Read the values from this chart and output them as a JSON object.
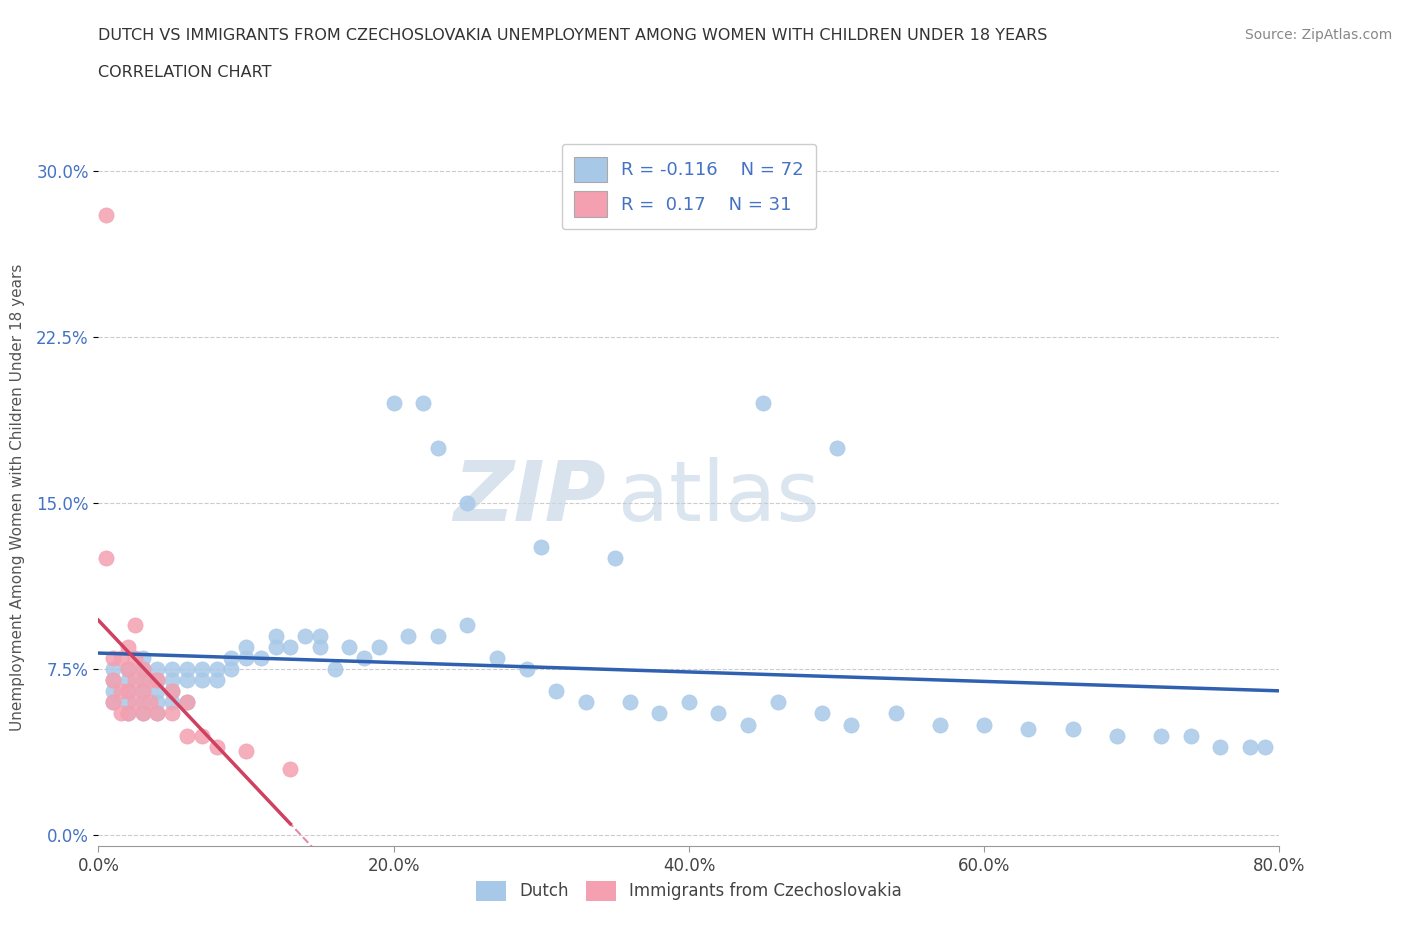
{
  "title_line1": "DUTCH VS IMMIGRANTS FROM CZECHOSLOVAKIA UNEMPLOYMENT AMONG WOMEN WITH CHILDREN UNDER 18 YEARS",
  "title_line2": "CORRELATION CHART",
  "source": "Source: ZipAtlas.com",
  "ylabel": "Unemployment Among Women with Children Under 18 years",
  "xlim": [
    0.0,
    0.8
  ],
  "ylim": [
    -0.005,
    0.31
  ],
  "yticks": [
    0.0,
    0.075,
    0.15,
    0.225,
    0.3
  ],
  "ytick_labels": [
    "0.0%",
    "7.5%",
    "15.0%",
    "22.5%",
    "30.0%"
  ],
  "xticks": [
    0.0,
    0.2,
    0.4,
    0.6,
    0.8
  ],
  "xtick_labels": [
    "0.0%",
    "20.0%",
    "40.0%",
    "60.0%",
    "80.0%"
  ],
  "dutch_color": "#a8c8e8",
  "czech_color": "#f4a0b0",
  "trend_dutch_color": "#3060b0",
  "trend_czech_color": "#d04060",
  "R_dutch": -0.116,
  "N_dutch": 72,
  "R_czech": 0.17,
  "N_czech": 31,
  "watermark_zip": "ZIP",
  "watermark_atlas": "atlas",
  "dutch_x": [
    0.01,
    0.01,
    0.01,
    0.01,
    0.02,
    0.02,
    0.02,
    0.02,
    0.02,
    0.03,
    0.03,
    0.03,
    0.03,
    0.03,
    0.03,
    0.04,
    0.04,
    0.04,
    0.04,
    0.04,
    0.05,
    0.05,
    0.05,
    0.05,
    0.06,
    0.06,
    0.06,
    0.07,
    0.07,
    0.08,
    0.08,
    0.09,
    0.09,
    0.1,
    0.1,
    0.11,
    0.12,
    0.12,
    0.13,
    0.14,
    0.15,
    0.15,
    0.16,
    0.17,
    0.18,
    0.19,
    0.21,
    0.23,
    0.25,
    0.27,
    0.29,
    0.31,
    0.33,
    0.36,
    0.38,
    0.4,
    0.42,
    0.44,
    0.46,
    0.49,
    0.51,
    0.54,
    0.57,
    0.6,
    0.63,
    0.66,
    0.69,
    0.72,
    0.74,
    0.76,
    0.78,
    0.79
  ],
  "dutch_y": [
    0.06,
    0.065,
    0.07,
    0.075,
    0.055,
    0.06,
    0.065,
    0.07,
    0.075,
    0.055,
    0.06,
    0.065,
    0.07,
    0.075,
    0.08,
    0.055,
    0.06,
    0.065,
    0.07,
    0.075,
    0.06,
    0.065,
    0.07,
    0.075,
    0.06,
    0.07,
    0.075,
    0.07,
    0.075,
    0.07,
    0.075,
    0.075,
    0.08,
    0.08,
    0.085,
    0.08,
    0.085,
    0.09,
    0.085,
    0.09,
    0.085,
    0.09,
    0.075,
    0.085,
    0.08,
    0.085,
    0.09,
    0.09,
    0.095,
    0.08,
    0.075,
    0.065,
    0.06,
    0.06,
    0.055,
    0.06,
    0.055,
    0.05,
    0.06,
    0.055,
    0.05,
    0.055,
    0.05,
    0.05,
    0.048,
    0.048,
    0.045,
    0.045,
    0.045,
    0.04,
    0.04,
    0.04
  ],
  "dutch_x_high": [
    0.2,
    0.22,
    0.23,
    0.25,
    0.3,
    0.35,
    0.45,
    0.5
  ],
  "dutch_y_high": [
    0.195,
    0.195,
    0.175,
    0.15,
    0.13,
    0.125,
    0.195,
    0.175
  ],
  "czech_x": [
    0.005,
    0.005,
    0.01,
    0.01,
    0.01,
    0.015,
    0.015,
    0.015,
    0.02,
    0.02,
    0.02,
    0.02,
    0.025,
    0.025,
    0.025,
    0.025,
    0.03,
    0.03,
    0.03,
    0.035,
    0.035,
    0.04,
    0.04,
    0.05,
    0.05,
    0.06,
    0.06,
    0.07,
    0.08,
    0.1,
    0.13
  ],
  "czech_y": [
    0.28,
    0.125,
    0.06,
    0.07,
    0.08,
    0.055,
    0.065,
    0.08,
    0.055,
    0.065,
    0.075,
    0.085,
    0.06,
    0.07,
    0.08,
    0.095,
    0.055,
    0.065,
    0.075,
    0.06,
    0.07,
    0.055,
    0.07,
    0.055,
    0.065,
    0.045,
    0.06,
    0.045,
    0.04,
    0.038,
    0.03
  ]
}
